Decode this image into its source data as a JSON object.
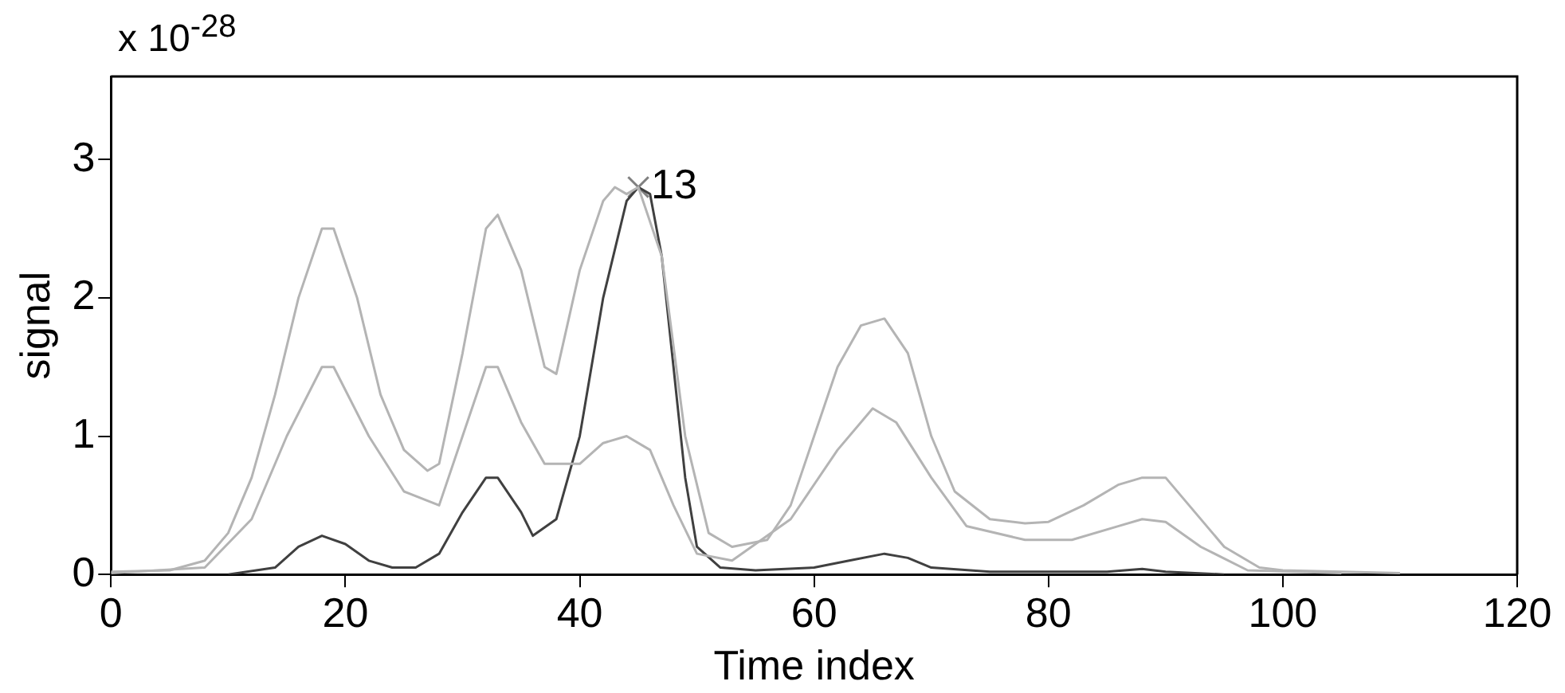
{
  "chart_data": {
    "type": "line",
    "xlabel": "Time index",
    "ylabel": "signal",
    "xlim": [
      0,
      120
    ],
    "xticks": [
      0,
      20,
      40,
      60,
      80,
      100,
      120
    ],
    "ylim": [
      0,
      3.6
    ],
    "yticks": [
      0,
      1,
      2,
      3
    ],
    "grid": false,
    "legend": false,
    "marker": "none",
    "line_style": "solid",
    "annotations": [
      "x 10$^{-28}$",
      {
        "text": "13",
        "x": 45,
        "y": 2.8
      }
    ],
    "series": [
      {
        "color": "#b4b4b4",
        "x": [
          0,
          5,
          8,
          10,
          12,
          14,
          16,
          18,
          19,
          21,
          23,
          25,
          27,
          28,
          30,
          32,
          33,
          35,
          37,
          38,
          40,
          42,
          43,
          44,
          45,
          47,
          49,
          51,
          53,
          56,
          58,
          60,
          62,
          64,
          66,
          68,
          70,
          72,
          75,
          78,
          80,
          83,
          86,
          88,
          90,
          92,
          95,
          98,
          100,
          105,
          110
        ],
        "values": [
          0.02,
          0.03,
          0.1,
          0.3,
          0.7,
          1.3,
          2.0,
          2.5,
          2.5,
          2.0,
          1.3,
          0.9,
          0.75,
          0.8,
          1.6,
          2.5,
          2.6,
          2.2,
          1.5,
          1.45,
          2.2,
          2.7,
          2.8,
          2.75,
          2.8,
          2.3,
          1.0,
          0.3,
          0.2,
          0.25,
          0.5,
          1.0,
          1.5,
          1.8,
          1.85,
          1.6,
          1.0,
          0.6,
          0.4,
          0.37,
          0.38,
          0.5,
          0.65,
          0.7,
          0.7,
          0.5,
          0.2,
          0.05,
          0.03,
          0.02,
          0.01
        ]
      },
      {
        "color": "#b4b4b4",
        "x": [
          0,
          8,
          12,
          15,
          18,
          19,
          22,
          25,
          28,
          30,
          32,
          33,
          35,
          37,
          40,
          42,
          44,
          46,
          48,
          50,
          53,
          58,
          62,
          65,
          67,
          70,
          73,
          78,
          82,
          86,
          88,
          90,
          93,
          97,
          105
        ],
        "values": [
          0.01,
          0.05,
          0.4,
          1.0,
          1.5,
          1.5,
          1.0,
          0.6,
          0.5,
          1.0,
          1.5,
          1.5,
          1.1,
          0.8,
          0.8,
          0.95,
          1.0,
          0.9,
          0.5,
          0.15,
          0.1,
          0.4,
          0.9,
          1.2,
          1.1,
          0.7,
          0.35,
          0.25,
          0.25,
          0.35,
          0.4,
          0.38,
          0.2,
          0.03,
          0.01
        ]
      },
      {
        "color": "#404040",
        "x": [
          10,
          14,
          16,
          18,
          20,
          22,
          24,
          26,
          28,
          30,
          32,
          33,
          35,
          36,
          38,
          40,
          42,
          44,
          45,
          46,
          47,
          48,
          49,
          50,
          52,
          55,
          60,
          63,
          66,
          68,
          70,
          75,
          85,
          88,
          90,
          95
        ],
        "values": [
          0,
          0.05,
          0.2,
          0.28,
          0.22,
          0.1,
          0.05,
          0.05,
          0.15,
          0.45,
          0.7,
          0.7,
          0.45,
          0.28,
          0.4,
          1.0,
          2.0,
          2.7,
          2.8,
          2.75,
          2.3,
          1.5,
          0.7,
          0.2,
          0.05,
          0.03,
          0.05,
          0.1,
          0.15,
          0.12,
          0.05,
          0.02,
          0.02,
          0.04,
          0.02,
          0
        ]
      },
      {
        "type": "scatter",
        "marker": "cross",
        "color": "#808080",
        "x": [
          45
        ],
        "values": [
          2.8
        ]
      }
    ]
  }
}
